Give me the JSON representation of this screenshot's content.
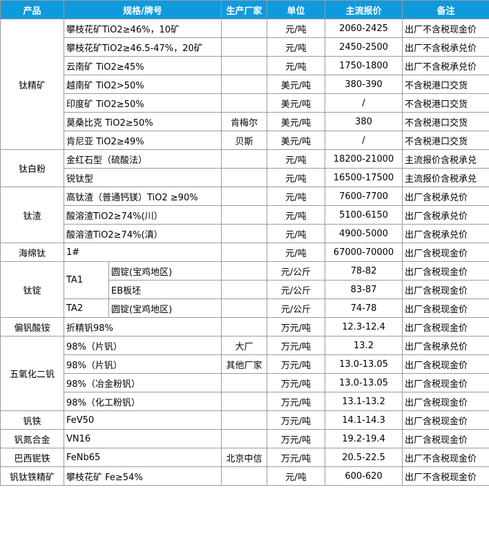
{
  "header": [
    "产品",
    "规格/牌号",
    "生产厂家",
    "单位",
    "主流报价",
    "备注"
  ],
  "groups": [
    {
      "product": "钛精矿",
      "rows": [
        {
          "spec": "攀枝花矿TiO2≥46%，10矿",
          "unit": "元/吨",
          "price": "2060-2425",
          "note": "出厂不含税现金价"
        },
        {
          "spec": "攀枝花矿TiO2≥46.5-47%，20矿",
          "unit": "元/吨",
          "price": "2450-2500",
          "note": "出厂不含税承兑价"
        },
        {
          "spec": "云南矿 TiO2≥45%",
          "unit": "元/吨",
          "price": "1750-1800",
          "note": "出厂不含税承兑价"
        },
        {
          "spec": "越南矿 TiO2>50%",
          "unit": "美元/吨",
          "price": "380-390",
          "note": "不含税港口交货"
        },
        {
          "spec": "印度矿 TiO2≥50%",
          "unit": "美元/吨",
          "price": "/",
          "note": "不含税港口交货"
        },
        {
          "spec": "莫桑比克 TiO2≥50%",
          "maker": "肯梅尔",
          "unit": "美元/吨",
          "price": "380",
          "note": "不含税港口交货"
        },
        {
          "spec": "肯尼亚 TiO2≥49%",
          "maker": "贝斯",
          "unit": "美元/吨",
          "price": "/",
          "note": "不含税港口交货"
        }
      ]
    },
    {
      "product": "钛白粉",
      "rows": [
        {
          "spec": "金红石型（硫酸法）",
          "unit": "元/吨",
          "price": "18200-21000",
          "note": "主流报价含税承兑"
        },
        {
          "spec": "锐钛型",
          "unit": "元/吨",
          "price": "16500-17500",
          "note": "主流报价含税承兑"
        }
      ]
    },
    {
      "product": "钛渣",
      "rows": [
        {
          "spec": "高钛渣（普通钙镁）TiO2 ≥90%",
          "unit": "元/吨",
          "price": "7600-7700",
          "note": "出厂含税承兑价"
        },
        {
          "spec": "酸溶渣TiO2≥74%(川）",
          "unit": "元/吨",
          "price": "5100-6150",
          "note": "出厂含税承兑价"
        },
        {
          "spec": "酸溶渣TiO2≥74%(滇）",
          "unit": "元/吨",
          "price": "4900-5000",
          "note": "出厂含税承兑价"
        }
      ]
    },
    {
      "product": "海绵钛",
      "rows": [
        {
          "spec": "1#",
          "unit": "元/吨",
          "price": "67000-70000",
          "note": "出厂含税现金价"
        }
      ]
    },
    {
      "product": "钛锭",
      "subgroups": [
        {
          "grade": "TA1",
          "rows": [
            {
              "form": "圆锭(宝鸡地区)",
              "unit": "元/公斤",
              "price": "78-82",
              "note": "出厂含税现金价"
            },
            {
              "form": "EB板坯",
              "unit": "元/公斤",
              "price": "83-87",
              "note": "出厂含税现金价"
            }
          ]
        },
        {
          "grade": "TA2",
          "rows": [
            {
              "form": "圆锭(宝鸡地区)",
              "unit": "元/公斤",
              "price": "74-78",
              "note": "出厂含税现金价"
            }
          ]
        }
      ]
    },
    {
      "product": "偏钒酸铵",
      "rows": [
        {
          "spec": "折精钒98%",
          "unit": "万元/吨",
          "price": "12.3-12.4",
          "note": "出厂含税现金价"
        }
      ]
    },
    {
      "product": "五氧化二钒",
      "rows": [
        {
          "spec": "98%（片钒）",
          "maker": "大厂",
          "unit": "万元/吨",
          "price": "13.2",
          "note": "出厂含税承兑价"
        },
        {
          "spec": "98%（片钒）",
          "maker": "其他厂家",
          "unit": "万元/吨",
          "price": "13.0-13.05",
          "note": "出厂含税现金价"
        },
        {
          "spec": "98%（冶金粉钒）",
          "unit": "万元/吨",
          "price": "13.0-13.05",
          "note": "出厂含税现金价"
        },
        {
          "spec": "98%（化工粉钒）",
          "unit": "万元/吨",
          "price": "13.1-13.2",
          "note": "出厂含税现金价"
        }
      ]
    },
    {
      "product": "钒铁",
      "rows": [
        {
          "spec": "FeV50",
          "unit": "万元/吨",
          "price": "14.1-14.3",
          "note": "出厂含税现金价"
        }
      ]
    },
    {
      "product": "钒氮合金",
      "rows": [
        {
          "spec": "VN16",
          "unit": "万元/吨",
          "price": "19.2-19.4",
          "note": "出厂含税现金价"
        }
      ]
    },
    {
      "product": "巴西铌铁",
      "rows": [
        {
          "spec": "FeNb65",
          "maker": "北京中信",
          "unit": "万元/吨",
          "price": "20.5-22.5",
          "note": "出厂不含税现金价"
        }
      ]
    },
    {
      "product": "钒钛铁精矿",
      "rows": [
        {
          "spec": "攀枝花矿 Fe≥54%",
          "unit": "元/吨",
          "price": "600-620",
          "note": "出厂不含税现金价"
        }
      ]
    }
  ]
}
